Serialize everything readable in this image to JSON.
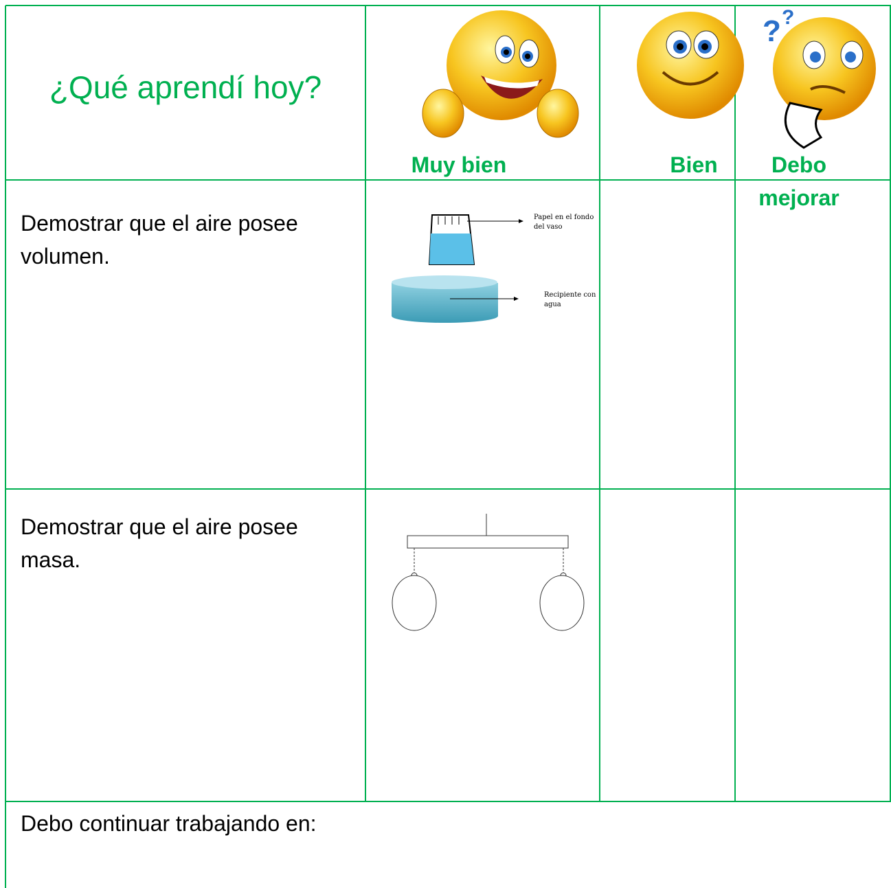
{
  "header": {
    "title": "¿Qué aprendí hoy?",
    "levels": [
      "Muy bien",
      "Bien",
      "Debo mejorar"
    ]
  },
  "rows": [
    {
      "task": "Demostrar que el aire posee volumen.",
      "labels": [
        "Papel en el fondo del vaso",
        "Recipiente con agua"
      ]
    },
    {
      "task": "Demostrar que el aire posee masa."
    }
  ],
  "footer": "Debo continuar trabajando en:"
}
